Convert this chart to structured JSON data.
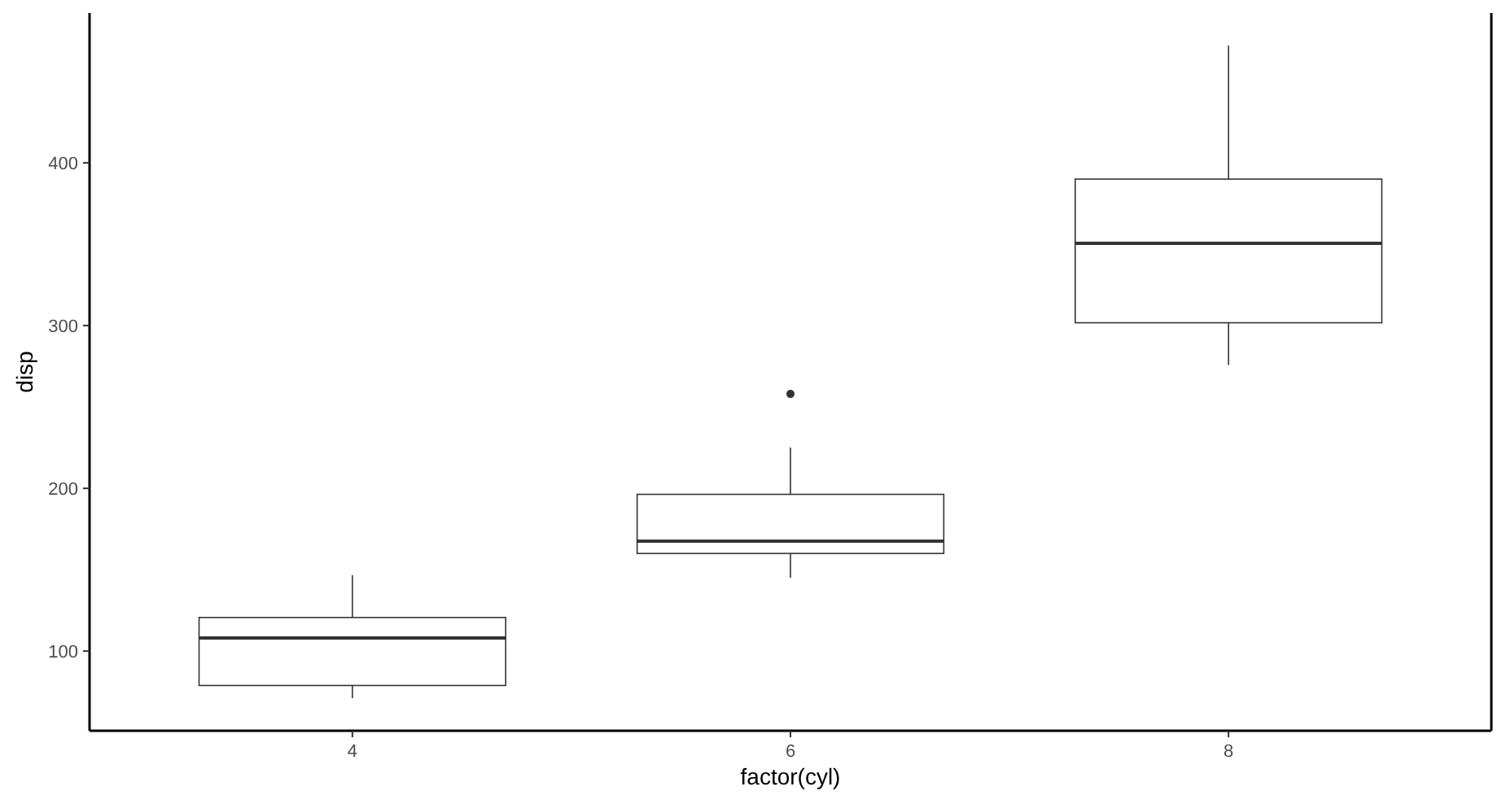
{
  "chart_data": {
    "type": "box",
    "xlabel": "factor(cyl)",
    "ylabel": "disp",
    "categories": [
      "4",
      "6",
      "8"
    ],
    "boxes": [
      {
        "low": 71.1,
        "q1": 78.85,
        "median": 108,
        "q3": 120.65,
        "high": 146.7
      },
      {
        "low": 145,
        "q1": 160,
        "median": 167.6,
        "q3": 196.3,
        "high": 225,
        "outliers": [
          258
        ]
      },
      {
        "low": 275.8,
        "q1": 301.75,
        "median": 350.5,
        "q3": 390,
        "high": 472
      }
    ],
    "ylim": [
      51.05,
      492.05
    ],
    "yticks": [
      100,
      200,
      300,
      400
    ],
    "grid": false
  }
}
